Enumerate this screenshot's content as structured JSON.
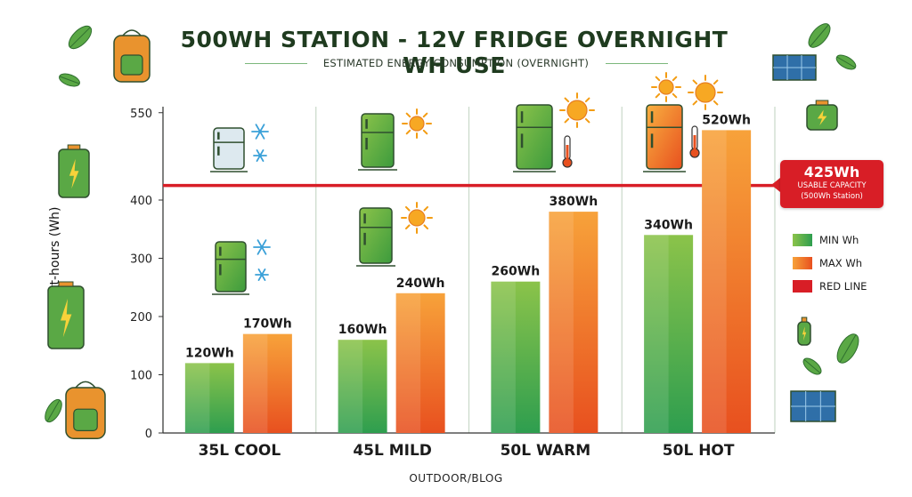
{
  "header": {
    "title": "500WH STATION - 12V FRIDGE OVERNIGHT WH USE",
    "subtitle": "ESTIMATED ENERGY CONSUMPTION (OVERNIGHT)"
  },
  "footer": {
    "text": "OUTDOOR/BLOG"
  },
  "chart_data": {
    "type": "bar",
    "ylabel": "Watt-hours (Wh)",
    "xlabel": "",
    "ylim": [
      0,
      600
    ],
    "yticks": [
      0,
      100,
      200,
      300,
      400,
      550
    ],
    "categories": [
      "35L COOL",
      "45L MILD",
      "50L WARM",
      "50L HOT"
    ],
    "series": [
      {
        "name": "MIN Wh",
        "values": [
          120,
          160,
          260,
          340
        ],
        "labels": [
          "120Wh",
          "160Wh",
          "260Wh",
          "340Wh"
        ],
        "color": "#4caf50"
      },
      {
        "name": "MAX Wh",
        "values": [
          170,
          240,
          380,
          520
        ],
        "labels": [
          "170Wh",
          "240Wh",
          "380Wh",
          "520Wh"
        ],
        "color": "#f28c28"
      }
    ],
    "reference_line": {
      "name": "RED LINE",
      "value": 425,
      "color": "#d81e26"
    },
    "annotation": {
      "value_label": "425Wh",
      "line1": "USABLE CAPACITY",
      "line2": "(500Wh Station)"
    },
    "legend_position": "right",
    "grid": false,
    "icons": [
      "fridge-icon",
      "snowflake-icon",
      "sun-icon",
      "thermometer-icon",
      "backpack-icon",
      "battery-icon",
      "solar-panel-icon",
      "leaf-icon"
    ]
  }
}
